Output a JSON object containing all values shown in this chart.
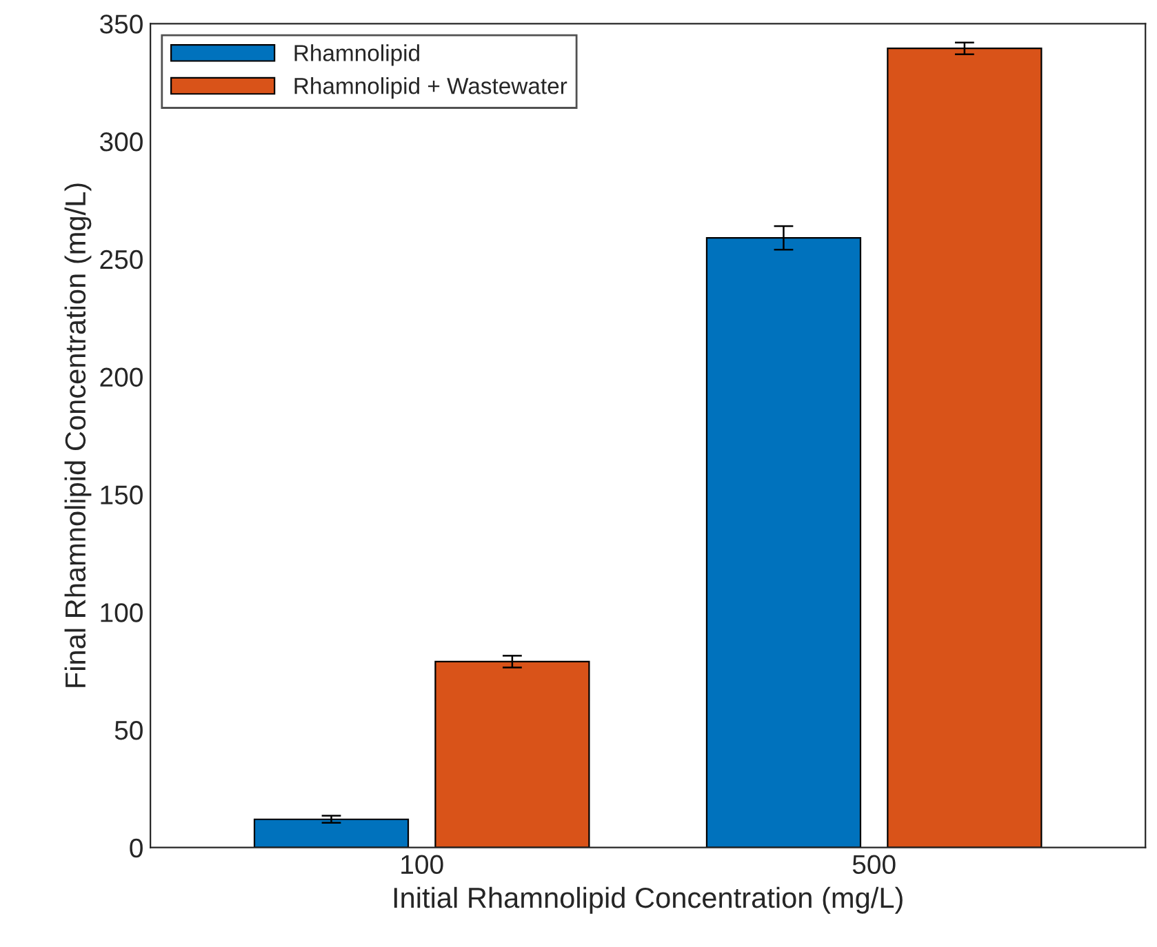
{
  "chart_data": {
    "type": "bar",
    "xlabel": "Initial Rhamnolipid Concentration (mg/L)",
    "ylabel": "Final Rhamnolipid Concentration (mg/L)",
    "categories": [
      "100",
      "500"
    ],
    "series": [
      {
        "name": "Rhamnolipid",
        "color": "#0072bd",
        "values": [
          12,
          259
        ],
        "errors": [
          1.5,
          5
        ]
      },
      {
        "name": "Rhamnolipid + Wastewater",
        "color": "#d95319",
        "values": [
          79,
          339.5
        ],
        "errors": [
          2.5,
          2.5
        ]
      }
    ],
    "ylim": [
      0,
      350
    ],
    "yticks": [
      0,
      50,
      100,
      150,
      200,
      250,
      300,
      350
    ],
    "grid": false,
    "legend": "top left"
  }
}
